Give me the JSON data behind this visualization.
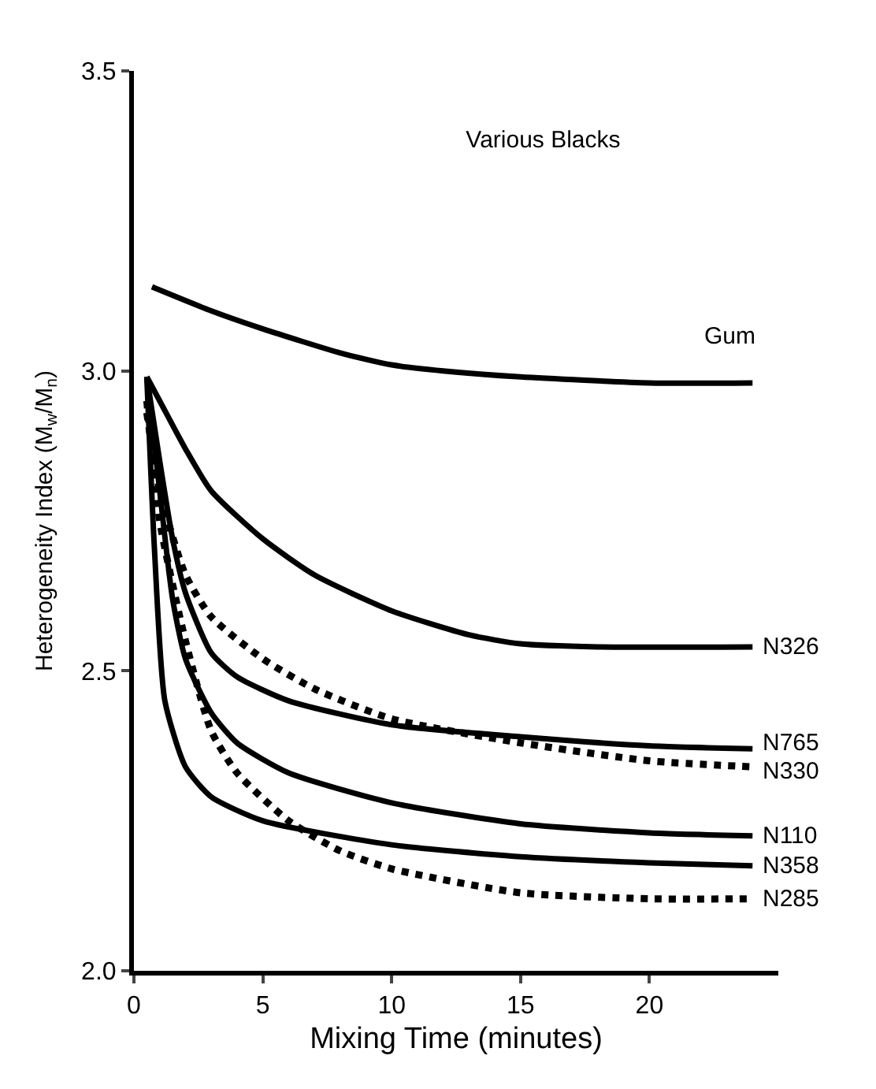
{
  "chart_data": {
    "type": "line",
    "title": "Various Blacks",
    "xlabel": "Mixing Time (minutes)",
    "ylabel": "Heterogeneity Index (M$_{w}$/M$_{n}$)",
    "xlim": [
      0,
      25
    ],
    "xticks": [
      0,
      5,
      10,
      15,
      20
    ],
    "ylim": [
      2.0,
      3.5
    ],
    "yticks": [
      {
        "value": 2.0,
        "label": "2.0"
      },
      {
        "value": 2.5,
        "label": "2.5"
      },
      {
        "value": 3.0,
        "label": "3.0"
      },
      {
        "value": 3.5,
        "label": "3.5"
      }
    ],
    "legend": false,
    "marker": "none",
    "series": [
      {
        "name": "Gum",
        "color": "#000000",
        "line_style": "solid",
        "x": [
          0.7,
          3,
          5,
          8,
          10,
          12,
          15,
          20,
          24
        ],
        "values": [
          3.14,
          3.1,
          3.07,
          3.03,
          3.01,
          3.0,
          2.99,
          2.98,
          2.98
        ]
      },
      {
        "name": "N326",
        "color": "#000000",
        "line_style": "solid",
        "x": [
          0.5,
          1,
          2,
          3,
          5,
          7,
          10,
          13,
          15,
          18,
          24
        ],
        "values": [
          2.99,
          2.95,
          2.87,
          2.8,
          2.72,
          2.66,
          2.6,
          2.56,
          2.545,
          2.54,
          2.54
        ]
      },
      {
        "name": "N765",
        "color": "#000000",
        "line_style": "solid",
        "x": [
          0.5,
          1,
          1.5,
          2,
          3,
          4,
          6,
          10,
          15,
          20,
          24
        ],
        "values": [
          2.99,
          2.85,
          2.72,
          2.63,
          2.53,
          2.49,
          2.45,
          2.41,
          2.39,
          2.375,
          2.37
        ]
      },
      {
        "name": "N330",
        "color": "#000000",
        "line_style": "dotted",
        "x": [
          0.5,
          1,
          2,
          3,
          5,
          7,
          10,
          15,
          20,
          24
        ],
        "values": [
          2.93,
          2.8,
          2.66,
          2.59,
          2.52,
          2.47,
          2.42,
          2.38,
          2.35,
          2.34
        ]
      },
      {
        "name": "N110",
        "color": "#000000",
        "line_style": "solid",
        "x": [
          0.5,
          1,
          1.5,
          2,
          3,
          4,
          6,
          10,
          15,
          20,
          24
        ],
        "values": [
          2.99,
          2.8,
          2.62,
          2.52,
          2.43,
          2.38,
          2.33,
          2.28,
          2.245,
          2.23,
          2.225
        ]
      },
      {
        "name": "N358",
        "color": "#000000",
        "line_style": "solid",
        "x": [
          0.5,
          0.8,
          1.2,
          2,
          3,
          5,
          10,
          15,
          20,
          24
        ],
        "values": [
          2.99,
          2.7,
          2.45,
          2.34,
          2.29,
          2.25,
          2.21,
          2.19,
          2.18,
          2.175
        ]
      },
      {
        "name": "N285",
        "color": "#000000",
        "line_style": "dotted",
        "x": [
          0.5,
          1,
          2,
          3,
          4,
          6,
          8,
          10,
          15,
          20,
          24
        ],
        "values": [
          2.95,
          2.75,
          2.55,
          2.4,
          2.33,
          2.25,
          2.2,
          2.17,
          2.13,
          2.12,
          2.12
        ]
      }
    ]
  }
}
